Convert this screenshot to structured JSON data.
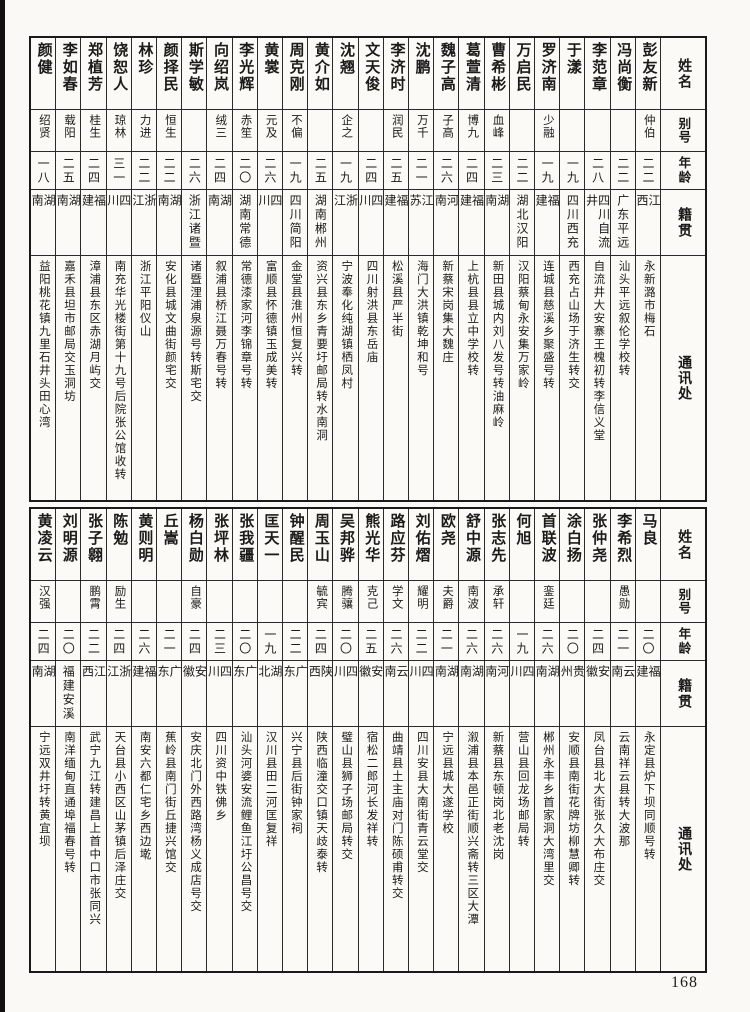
{
  "page": {
    "number": "168"
  },
  "row_headers": {
    "name": "姓名",
    "alias": "别号",
    "age": "年龄",
    "origin": "籍贯",
    "address": "通讯处"
  },
  "tables": [
    {
      "entries": [
        {
          "name": "颜健",
          "alias": "绍贤",
          "age": "一八",
          "origin": "湖南",
          "address": "益阳桃花镇九里石井头田心湾"
        },
        {
          "name": "李如春",
          "alias": "载阳",
          "age": "二五",
          "origin": "湖南",
          "address": "嘉禾县坦市邮局交玉洞坊"
        },
        {
          "name": "郑植芳",
          "alias": "桂生",
          "age": "二四",
          "origin": "福建",
          "address": "漳浦县东区赤湖月屿交"
        },
        {
          "name": "饶恕人",
          "alias": "琼林",
          "age": "三一",
          "origin": "四川",
          "address": "南充华光楼街第十九号后院张公馆收转"
        },
        {
          "name": "林珍",
          "alias": "力进",
          "age": "二二",
          "origin": "浙江",
          "address": "浙江平阳仪山"
        },
        {
          "name": "颜择民",
          "alias": "恒生",
          "age": "二二",
          "origin": "湖南",
          "address": "安化县城文曲街颜宅交"
        },
        {
          "name": "斯学敏",
          "alias": "",
          "age": "二六",
          "origin": "浙江诸暨",
          "address": "诸暨浬浦泉源号转斯宅交"
        },
        {
          "name": "向绍岚",
          "alias": "绒三",
          "age": "二四",
          "origin": "湖南",
          "address": "叙浦县桥江聂万春号转"
        },
        {
          "name": "李光辉",
          "alias": "赤笙",
          "age": "二〇",
          "origin": "湖南常德",
          "address": "常德漆家河李锦章号转"
        },
        {
          "name": "黄裳",
          "alias": "元及",
          "age": "二六",
          "origin": "四川",
          "address": "富顺县怀德镇玉成美转"
        },
        {
          "name": "周克刚",
          "alias": "不偏",
          "age": "一九",
          "origin": "四川简阳",
          "address": "金堂县淮州恒复兴转"
        },
        {
          "name": "黄介如",
          "alias": "",
          "age": "二五",
          "origin": "湖南郴州",
          "address": "资兴县东乡青要圩邮局转水南洞"
        },
        {
          "name": "沈翘",
          "alias": "企之",
          "age": "一九",
          "origin": "浙江",
          "address": "宁波奉化纯湖镇栖凤村"
        },
        {
          "name": "文天俊",
          "alias": "",
          "age": "二四",
          "origin": "四川",
          "address": "四川射洪县东岳庙"
        },
        {
          "name": "李济时",
          "alias": "润民",
          "age": "二五",
          "origin": "福建",
          "address": "松溪县严半街"
        },
        {
          "name": "沈鹏",
          "alias": "万千",
          "age": "二一",
          "origin": "江苏",
          "address": "海门大洪镇乾坤和号"
        },
        {
          "name": "魏子高",
          "alias": "子高",
          "age": "二六",
          "origin": "河南",
          "address": "新蔡宋岗集大魏庄"
        },
        {
          "name": "葛萱清",
          "alias": "博九",
          "age": "二四",
          "origin": "福建",
          "address": "上杭县县立中学校转"
        },
        {
          "name": "曹希彬",
          "alias": "血峰",
          "age": "二三",
          "origin": "湖南",
          "address": "新田县城内刘八发号转油麻岭"
        },
        {
          "name": "万启民",
          "alias": "",
          "age": "二二",
          "origin": "湖北汉阳",
          "address": "汉阳蔡甸永安集万家岭"
        },
        {
          "name": "罗济南",
          "alias": "少融",
          "age": "一九",
          "origin": "福建",
          "address": "连城县慈溪乡聚盛号转"
        },
        {
          "name": "于漾",
          "alias": "",
          "age": "一九",
          "origin": "四川西充",
          "address": "西充占山场于济生转交"
        },
        {
          "name": "李范章",
          "alias": "",
          "age": "二八",
          "origin": "四川自流井",
          "address": "自流井大安寨王槐初转李信义堂"
        },
        {
          "name": "冯尚衡",
          "alias": "",
          "age": "二二",
          "origin": "广东平远",
          "address": "汕头平远叙伦学校转"
        },
        {
          "name": "彭友新",
          "alias": "仲伯",
          "age": "二二",
          "origin": "江西",
          "address": "永新潞市梅石"
        }
      ]
    },
    {
      "entries": [
        {
          "name": "黄凌云",
          "alias": "汉强",
          "age": "二四",
          "origin": "湖南",
          "address": "宁远双井圩转黄宜坝"
        },
        {
          "name": "刘明源",
          "alias": "",
          "age": "二〇",
          "origin": "福建安溪",
          "address": "南洋缅甸直通埠福春号转"
        },
        {
          "name": "张子翱",
          "alias": "鹏霄",
          "age": "二二",
          "origin": "江西",
          "address": "武宁九江转建昌上首中口市张同兴"
        },
        {
          "name": "陈勉",
          "alias": "励生",
          "age": "二四",
          "origin": "浙江",
          "address": "天台县小西区山茅镇后泽庄交"
        },
        {
          "name": "黄则明",
          "alias": "",
          "age": "二六",
          "origin": "福建",
          "address": "南安六都仁宅乡西边墘"
        },
        {
          "name": "丘嵩",
          "alias": "",
          "age": "二一",
          "origin": "广东",
          "address": "蕉岭县南门街丘捷兴馆交"
        },
        {
          "name": "杨白勋",
          "alias": "自豪",
          "age": "二四",
          "origin": "安徽",
          "address": "安庆北门外西路湾杨义成店号交"
        },
        {
          "name": "张坪林",
          "alias": "",
          "age": "二三",
          "origin": "四川",
          "address": "四川资中铁佛乡"
        },
        {
          "name": "张我疆",
          "alias": "",
          "age": "二〇",
          "origin": "广东",
          "address": "汕头河婆安流鲤鱼江圩公昌号交"
        },
        {
          "name": "匡天一",
          "alias": "",
          "age": "一九",
          "origin": "湖北",
          "address": "汉川县田二河匡复祥"
        },
        {
          "name": "钟醒民",
          "alias": "",
          "age": "二二",
          "origin": "广东",
          "address": "兴宁县后街钟家祠"
        },
        {
          "name": "周玉山",
          "alias": "毓宾",
          "age": "二四",
          "origin": "陕西",
          "address": "陕西临潼交口镇天歧泰转"
        },
        {
          "name": "吴邦骅",
          "alias": "腾骧",
          "age": "二〇",
          "origin": "四川",
          "address": "璧山县狮子场邮局转交"
        },
        {
          "name": "熊光华",
          "alias": "克己",
          "age": "二五",
          "origin": "安徽",
          "address": "宿松二郎河长发祥转"
        },
        {
          "name": "路应芬",
          "alias": "学文",
          "age": "二六",
          "origin": "云南",
          "address": "曲靖县土主庙对门陈硕甫转交"
        },
        {
          "name": "刘佑熠",
          "alias": "耀明",
          "age": "二二",
          "origin": "四川",
          "address": "四川安县大南街青云堂交"
        },
        {
          "name": "欧尧",
          "alias": "夫爵",
          "age": "二一",
          "origin": "湖南",
          "address": "宁远县城大遂学校"
        },
        {
          "name": "舒中源",
          "alias": "南波",
          "age": "二六",
          "origin": "湖南",
          "address": "溆浦县本邑正街顺兴斋转三区大潭"
        },
        {
          "name": "张志先",
          "alias": "承轩",
          "age": "二六",
          "origin": "河南",
          "address": "新蔡县东顿岗北老沈岗"
        },
        {
          "name": "何旭",
          "alias": "",
          "age": "一九",
          "origin": "四川",
          "address": "营山县回龙场邮局转"
        },
        {
          "name": "首联波",
          "alias": "銮廷",
          "age": "二六",
          "origin": "湖南",
          "address": "郴州永丰乡首家洞大湾里交"
        },
        {
          "name": "涂白扬",
          "alias": "",
          "age": "二〇",
          "origin": "贵州",
          "address": "安顺县南街花牌坊柳慧卿转"
        },
        {
          "name": "张仲尧",
          "alias": "",
          "age": "二四",
          "origin": "安徽",
          "address": "凤台县北大街张久大布庄交"
        },
        {
          "name": "李希烈",
          "alias": "愚勋",
          "age": "二一",
          "origin": "云南",
          "address": "云南祥云县转大波那"
        },
        {
          "name": "马良",
          "alias": "",
          "age": "二〇",
          "origin": "福建",
          "address": "永定县炉下坝同顺号转"
        }
      ]
    }
  ]
}
